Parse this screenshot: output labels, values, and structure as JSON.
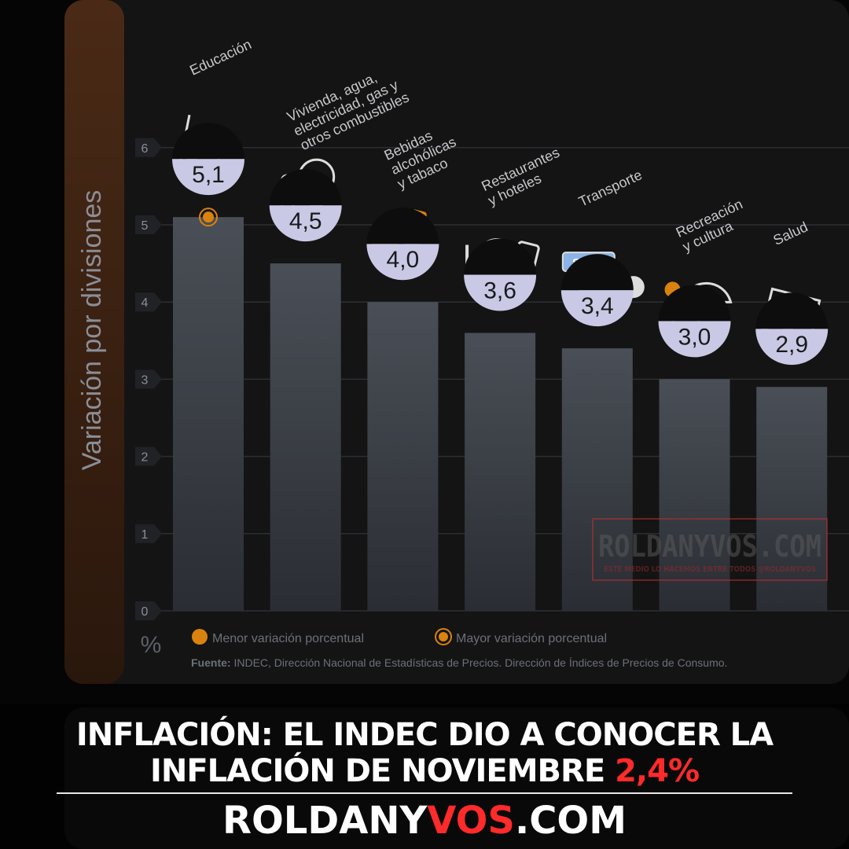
{
  "chart_data": {
    "type": "bar",
    "ylabel": "Variación por divisiones",
    "unit_label": "%",
    "ylim": [
      0,
      6
    ],
    "yticks": [
      "0",
      "1",
      "2",
      "3",
      "4",
      "5",
      "6"
    ],
    "categories": [
      "Educación",
      "Vivienda, agua, electricidad, gas y otros combustibles",
      "Bebidas alcohólicas y tabaco",
      "Restaurantes y hoteles",
      "Transporte",
      "Recreación y cultura",
      "Salud"
    ],
    "values": [
      5.1,
      4.5,
      4.0,
      3.6,
      3.4,
      3.0,
      2.9
    ],
    "value_labels": [
      "5,1",
      "4,5",
      "4,0",
      "3,6",
      "3,4",
      "3,0",
      "2,9"
    ],
    "highlight_max_index": 0,
    "legend": [
      {
        "label": "Menor variación porcentual",
        "color": "#d9820f"
      },
      {
        "label": "Mayor variación porcentual",
        "color": "#d9820f"
      }
    ],
    "source_bold": "Fuente:",
    "source_text": " INDEC, Dirección Nacional de Estadísticas de Precios. Dirección de Índices de Precios de Consumo.",
    "legend_placement": "bottom",
    "grid": true
  },
  "icons": [
    "book-icon",
    "lightbulb-icon",
    "wine-bottle-icon",
    "plate-cutlery-icon",
    "car-sube-card-icon",
    "umbrella-sun-icon",
    "medical-cross-icon"
  ],
  "watermark": {
    "main": "ROLDANYVOS.COM",
    "sub": "ESTE MEDIO LO HACEMOS ENTRE TODOS @ROLDANYVOS"
  },
  "headline": {
    "line1": "INFLACIÓN: EL INDEC DIO A CONOCER LA",
    "line2": "INFLACIÓN DE NOVIEMBRE ",
    "highlight": "2,4%"
  },
  "brand": {
    "part1": "ROLDANY",
    "part2": "VOS",
    "part3": ".COM"
  },
  "colors": {
    "bar": "#4a4f57",
    "accent": "#d9820f",
    "headline_highlight": "#ff2a2a",
    "bubble": "#c9c9e6"
  }
}
